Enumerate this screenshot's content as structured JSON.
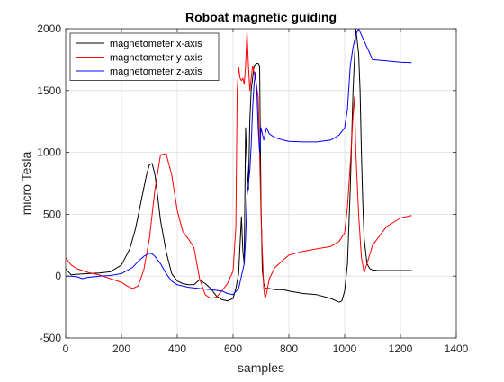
{
  "chart_data": {
    "type": "line",
    "title": "Roboat magnetic guiding",
    "xlabel": "samples",
    "ylabel": "micro Tesla",
    "xlim": [
      0,
      1400
    ],
    "ylim": [
      -500,
      2000
    ],
    "xticks": [
      0,
      200,
      400,
      600,
      800,
      1000,
      1200,
      1400
    ],
    "yticks": [
      -500,
      0,
      500,
      1000,
      1500,
      2000
    ],
    "xtick_labels": [
      "0",
      "200",
      "400",
      "600",
      "800",
      "1000",
      "1200",
      "1400"
    ],
    "ytick_labels": [
      "-500",
      "0",
      "500",
      "1000",
      "1500",
      "2000"
    ],
    "grid": true,
    "legend_position": "top-left",
    "series": [
      {
        "name": "magnetometer x-axis",
        "color": "#000000",
        "x": [
          0,
          20,
          40,
          80,
          120,
          160,
          200,
          230,
          250,
          270,
          290,
          300,
          310,
          320,
          330,
          340,
          360,
          380,
          400,
          420,
          440,
          460,
          480,
          500,
          520,
          540,
          560,
          580,
          600,
          610,
          620,
          630,
          635,
          640,
          645,
          650,
          655,
          660,
          665,
          670,
          675,
          680,
          685,
          690,
          695,
          700,
          705,
          710,
          715,
          720,
          730,
          750,
          780,
          800,
          850,
          900,
          950,
          980,
          990,
          1000,
          1010,
          1020,
          1030,
          1040,
          1050,
          1055,
          1060,
          1065,
          1070,
          1080,
          1090,
          1100,
          1120,
          1150,
          1200,
          1240
        ],
        "y": [
          60,
          10,
          15,
          20,
          25,
          35,
          90,
          220,
          380,
          600,
          820,
          900,
          910,
          820,
          640,
          450,
          200,
          20,
          -40,
          -60,
          -70,
          -70,
          -30,
          -60,
          -100,
          -160,
          -190,
          -200,
          -180,
          -100,
          20,
          480,
          200,
          100,
          1200,
          900,
          700,
          1250,
          1500,
          1600,
          1700,
          1710,
          1720,
          1720,
          1700,
          600,
          50,
          -60,
          -90,
          -100,
          -100,
          -110,
          -110,
          -120,
          -140,
          -150,
          -180,
          -210,
          -200,
          -120,
          100,
          700,
          1500,
          2000,
          1800,
          1500,
          1000,
          600,
          300,
          100,
          60,
          50,
          45,
          45,
          45,
          45
        ]
      },
      {
        "name": "magnetometer y-axis",
        "color": "#ff0000",
        "x": [
          0,
          20,
          40,
          80,
          120,
          160,
          200,
          220,
          240,
          260,
          280,
          300,
          320,
          340,
          360,
          380,
          400,
          420,
          440,
          460,
          480,
          500,
          520,
          540,
          560,
          580,
          600,
          610,
          615,
          620,
          625,
          630,
          635,
          640,
          645,
          650,
          655,
          660,
          670,
          680,
          690,
          695,
          700,
          705,
          710,
          715,
          720,
          730,
          750,
          780,
          800,
          850,
          900,
          950,
          980,
          1000,
          1010,
          1020,
          1025,
          1030,
          1035,
          1040,
          1050,
          1060,
          1070,
          1080,
          1100,
          1150,
          1200,
          1240
        ],
        "y": [
          150,
          90,
          60,
          30,
          10,
          -20,
          -50,
          -80,
          -100,
          -80,
          50,
          300,
          700,
          980,
          990,
          820,
          530,
          360,
          300,
          230,
          -20,
          -150,
          -180,
          -170,
          -120,
          -60,
          40,
          400,
          1500,
          1690,
          1600,
          1580,
          1600,
          1550,
          1700,
          1980,
          1700,
          1500,
          1700,
          1600,
          1450,
          1000,
          500,
          200,
          -100,
          -180,
          -140,
          -20,
          70,
          130,
          170,
          200,
          220,
          240,
          280,
          350,
          560,
          900,
          1100,
          1300,
          1450,
          1000,
          500,
          150,
          30,
          100,
          250,
          400,
          470,
          490
        ]
      },
      {
        "name": "magnetometer z-axis",
        "color": "#0000ff",
        "x": [
          0,
          20,
          40,
          60,
          80,
          120,
          160,
          200,
          240,
          260,
          280,
          300,
          310,
          320,
          340,
          360,
          380,
          400,
          440,
          480,
          520,
          560,
          580,
          600,
          620,
          630,
          640,
          645,
          650,
          655,
          660,
          665,
          670,
          675,
          680,
          685,
          690,
          695,
          700,
          710,
          720,
          730,
          750,
          780,
          800,
          850,
          900,
          950,
          980,
          1000,
          1010,
          1020,
          1030,
          1040,
          1050,
          1060,
          1070,
          1080,
          1100,
          1150,
          1200,
          1240
        ],
        "y": [
          0,
          0,
          -5,
          -20,
          -10,
          0,
          5,
          20,
          70,
          120,
          160,
          185,
          180,
          160,
          100,
          20,
          -40,
          -70,
          -90,
          -100,
          -110,
          -120,
          -140,
          -150,
          -100,
          0,
          100,
          300,
          650,
          750,
          850,
          1050,
          1350,
          1550,
          1650,
          1500,
          1200,
          1000,
          1200,
          1100,
          1200,
          1150,
          1120,
          1100,
          1090,
          1085,
          1085,
          1100,
          1140,
          1200,
          1350,
          1700,
          1850,
          1950,
          2000,
          1950,
          1900,
          1850,
          1750,
          1740,
          1730,
          1725
        ]
      }
    ]
  }
}
